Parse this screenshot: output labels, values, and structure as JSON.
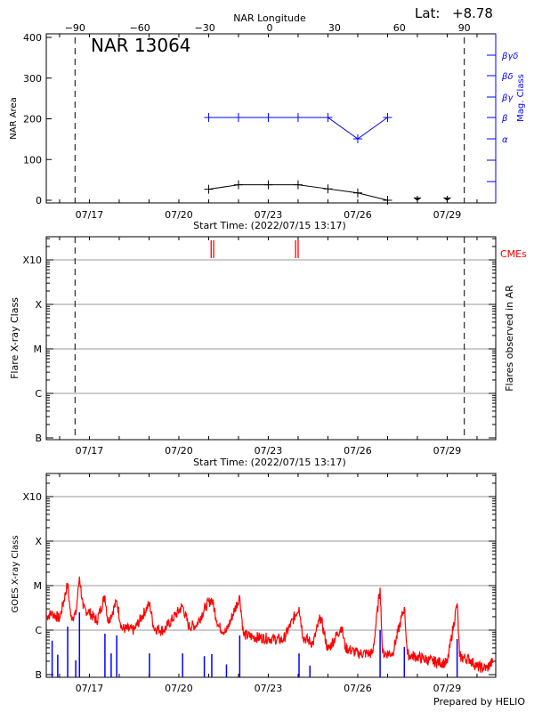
{
  "header": {
    "lat_label": "Lat:",
    "lat_value": "+8.78",
    "region": "NAR 13064",
    "top_axis_title": "NAR Longitude",
    "footer": "Prepared by HELIO"
  },
  "colors": {
    "area": "#000000",
    "mag_class": "#0000ff",
    "cme": "#ff0000",
    "goes_flux": "#ff0000",
    "goes_events": "#0000ff",
    "grid": "#999999"
  },
  "chart_data": [
    {
      "type": "line",
      "title": "NAR 13064",
      "xlabel": "Start Time: (2022/07/15 13:17)",
      "ylabel": "NAR Area",
      "y2label": "Mag. Class",
      "top_xlabel": "NAR Longitude",
      "top_xticks": [
        "-90",
        "-60",
        "-30",
        "0",
        "30",
        "60",
        "90"
      ],
      "xticks": [
        "07/17",
        "07/20",
        "07/23",
        "07/26",
        "07/29"
      ],
      "yticks": [
        "0",
        "100",
        "200",
        "300",
        "400"
      ],
      "ylim": [
        0,
        400
      ],
      "y2ticks": [
        "α",
        "β",
        "βγ",
        "βδ",
        "βγδ"
      ],
      "limb_longitudes": [
        -90,
        90
      ],
      "series": [
        {
          "name": "NAR Area",
          "x": [
            "07/21",
            "07/22",
            "07/23",
            "07/24",
            "07/25",
            "07/26",
            "07/27"
          ],
          "values": [
            27,
            38,
            38,
            38,
            28,
            18,
            0
          ]
        },
        {
          "name": "Mag. Class",
          "x": [
            "07/21",
            "07/22",
            "07/23",
            "07/24",
            "07/25",
            "07/26",
            "07/27"
          ],
          "values": [
            "β",
            "β",
            "β",
            "β",
            "β",
            "α",
            "β"
          ]
        }
      ],
      "missing_markers": {
        "x": [
          "07/28",
          "07/29"
        ],
        "values": [
          0,
          0
        ]
      }
    },
    {
      "type": "scatter",
      "xlabel": "Start Time: (2022/07/15 13:17)",
      "ylabel": "Flare X-ray Class",
      "y2label": "Flares observed in AR",
      "xticks": [
        "07/17",
        "07/20",
        "07/23",
        "07/26",
        "07/29"
      ],
      "yticks": [
        "B",
        "C",
        "M",
        "X",
        "X10"
      ],
      "grid": true,
      "legend": "CMEs",
      "cmes": [
        "07/21 02:00",
        "07/21 04:00",
        "07/23 22:00",
        "07/24 00:00"
      ],
      "flares": []
    },
    {
      "type": "line",
      "xlabel": "",
      "ylabel": "GOES X-ray Class",
      "xticks": [
        "07/17",
        "07/20",
        "07/23",
        "07/26",
        "07/29"
      ],
      "yticks": [
        "B",
        "C",
        "M",
        "X",
        "X10"
      ],
      "yscale": "log",
      "grid": true,
      "flux_series": [
        [
          "07/15 13:17",
          2e-06
        ],
        [
          "07/15 18:00",
          2.4e-06
        ],
        [
          "07/16 00:00",
          1.8e-06
        ],
        [
          "07/16 06:30",
          1.1e-05
        ],
        [
          "07/16 09:00",
          2e-06
        ],
        [
          "07/16 13:00",
          2.2e-06
        ],
        [
          "07/16 16:00",
          1.6e-05
        ],
        [
          "07/16 19:00",
          3e-06
        ],
        [
          "07/17 00:00",
          2.5e-06
        ],
        [
          "07/17 06:00",
          1.6e-06
        ],
        [
          "07/17 12:30",
          6e-06
        ],
        [
          "07/17 15:00",
          1.5e-06
        ],
        [
          "07/17 22:00",
          4.5e-06
        ],
        [
          "07/18 02:00",
          1.1e-06
        ],
        [
          "07/18 12:00",
          1e-06
        ],
        [
          "07/19 00:20",
          4e-06
        ],
        [
          "07/19 04:00",
          1.1e-06
        ],
        [
          "07/19 12:00",
          1e-06
        ],
        [
          "07/20 03:00",
          3.5e-06
        ],
        [
          "07/20 08:00",
          1.2e-06
        ],
        [
          "07/20 14:00",
          1.3e-06
        ],
        [
          "07/20 22:00",
          3.5e-06
        ],
        [
          "07/21 02:30",
          5e-06
        ],
        [
          "07/21 08:00",
          1.2e-06
        ],
        [
          "07/21 14:00",
          9e-07
        ],
        [
          "07/22 01:00",
          5.7e-06
        ],
        [
          "07/22 04:00",
          8e-07
        ],
        [
          "07/22 12:00",
          7e-07
        ],
        [
          "07/23 00:00",
          6.5e-07
        ],
        [
          "07/23 12:00",
          6e-07
        ],
        [
          "07/24 00:45",
          3.3e-06
        ],
        [
          "07/24 04:00",
          7e-07
        ],
        [
          "07/24 12:00",
          5e-07
        ],
        [
          "07/24 18:00",
          2e-06
        ],
        [
          "07/25 00:00",
          3.5e-07
        ],
        [
          "07/25 11:00",
          1.2e-06
        ],
        [
          "07/25 14:00",
          4e-07
        ],
        [
          "07/26 00:00",
          3e-07
        ],
        [
          "07/26 12:00",
          3e-07
        ],
        [
          "07/26 18:00",
          9e-06
        ],
        [
          "07/26 20:00",
          3e-07
        ],
        [
          "07/27 04:00",
          3e-07
        ],
        [
          "07/27 13:30",
          3.3e-06
        ],
        [
          "07/27 16:00",
          2.8e-07
        ],
        [
          "07/28 00:00",
          2.5e-07
        ],
        [
          "07/28 12:00",
          2e-07
        ],
        [
          "07/29 00:00",
          1.8e-07
        ],
        [
          "07/29 08:00",
          4e-06
        ],
        [
          "07/29 10:00",
          2.5e-07
        ],
        [
          "07/29 18:00",
          2.2e-07
        ],
        [
          "07/30 00:00",
          1.5e-07
        ],
        [
          "07/30 08:00",
          1.4e-07
        ],
        [
          "07/30 13:00",
          2e-07
        ]
      ],
      "events": [
        [
          "07/15 18:00",
          5.8e-07
        ],
        [
          "07/15 22:30",
          2.8e-07
        ],
        [
          "07/16 06:30",
          1.2e-06
        ],
        [
          "07/16 13:00",
          2.1e-07
        ],
        [
          "07/16 16:00",
          2.5e-06
        ],
        [
          "07/17 12:30",
          8.3e-07
        ],
        [
          "07/17 17:30",
          3e-07
        ],
        [
          "07/17 22:00",
          7.6e-07
        ],
        [
          "07/19 00:20",
          3e-07
        ],
        [
          "07/20 03:00",
          3e-07
        ],
        [
          "07/20 20:30",
          2.6e-07
        ],
        [
          "07/21 02:30",
          2.9e-07
        ],
        [
          "07/21 14:20",
          1.7e-07
        ],
        [
          "07/22 01:00",
          7.6e-07
        ],
        [
          "07/24 00:45",
          3e-07
        ],
        [
          "07/24 09:30",
          1.6e-07
        ],
        [
          "07/26 18:00",
          1e-06
        ],
        [
          "07/27 13:30",
          4.2e-07
        ],
        [
          "07/29 08:00",
          6.3e-07
        ]
      ]
    }
  ]
}
